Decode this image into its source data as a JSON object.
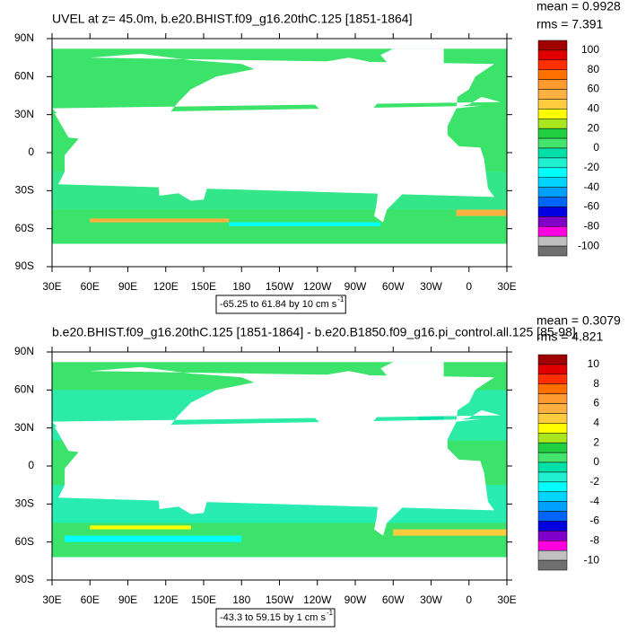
{
  "panels": [
    {
      "title": "UVEL at z=  45.0m, b.e20.BHIST.f09_g16.20thC.125 [1851-1864]",
      "mean": "mean = 0.9928",
      "rms": "rms = 7.391",
      "lat_labels": [
        "90N",
        "60N",
        "30N",
        "0",
        "30S",
        "60S",
        "90S"
      ],
      "lon_labels": [
        "30E",
        "60E",
        "90E",
        "120E",
        "150E",
        "180",
        "150W",
        "120W",
        "90W",
        "60W",
        "30W",
        "0",
        "30E"
      ],
      "colorbar_labels": [
        100,
        80,
        60,
        40,
        20,
        0,
        -20,
        -40,
        -60,
        -80,
        -100
      ],
      "range_text": "-65.25 to 61.84 by 10 cm s",
      "range_sup": "-1"
    },
    {
      "title": "b.e20.BHIST.f09_g16.20thC.125 [1851-1864] - b.e20.B1850.f09_g16.pi_control.all.125 [85-98]",
      "mean": "mean = 0.3079",
      "rms": "rms = 4.821",
      "lat_labels": [
        "90N",
        "60N",
        "30N",
        "0",
        "30S",
        "60S",
        "90S"
      ],
      "lon_labels": [
        "30E",
        "60E",
        "90E",
        "120E",
        "150E",
        "180",
        "150W",
        "120W",
        "90W",
        "60W",
        "30W",
        "0",
        "30E"
      ],
      "colorbar_labels": [
        10,
        8,
        6,
        4,
        2,
        0,
        -2,
        -4,
        -6,
        -8,
        -10
      ],
      "range_text": "-43.3 to 59.15 by 1 cm s",
      "range_sup": "-1"
    }
  ],
  "colors": [
    "#a00000",
    "#e00000",
    "#ff3000",
    "#ff7000",
    "#ff9a30",
    "#ffb040",
    "#ffcc40",
    "#ffff00",
    "#a8e61e",
    "#20d040",
    "#44e46e",
    "#00e0a8",
    "#20f0d0",
    "#00ffff",
    "#00d4ff",
    "#00a0ff",
    "#0064ff",
    "#0000e0",
    "#8000c8",
    "#ff00e0",
    "#c0c0c0",
    "#707070"
  ]
}
